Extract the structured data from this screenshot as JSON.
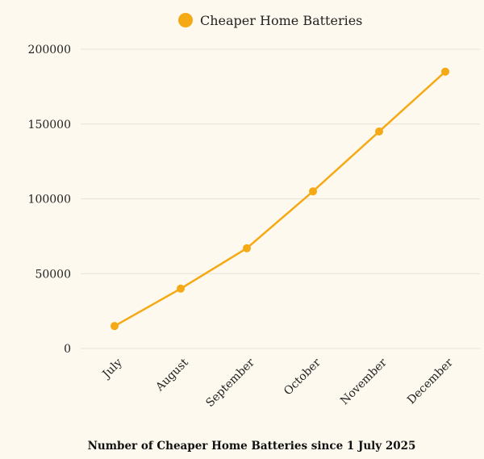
{
  "chart_data": {
    "type": "line",
    "title": "Number of Cheaper Home Batteries since 1 July 2025",
    "xlabel": "",
    "ylabel": "",
    "categories": [
      "July",
      "August",
      "September",
      "October",
      "November",
      "December"
    ],
    "series": [
      {
        "name": "Cheaper Home Batteries",
        "values": [
          15000,
          40000,
          67000,
          105000,
          145000,
          185000
        ],
        "color": "#f5a915"
      }
    ],
    "ylim": [
      0,
      200000
    ],
    "yticks": [
      0,
      50000,
      100000,
      150000,
      200000
    ],
    "grid": true,
    "legend": "top-center"
  }
}
